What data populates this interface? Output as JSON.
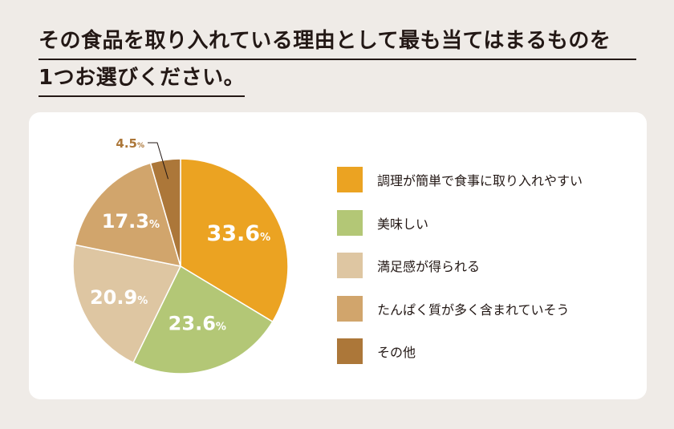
{
  "title": {
    "line1": "その食品を取り入れている理由として最も当てはまるものを",
    "line2": "1つお選びください。"
  },
  "chart_data": {
    "type": "pie",
    "unit": "%",
    "slices": [
      {
        "label": "調理が簡単で食事に取り入れやすい",
        "value": 33.6,
        "color": "#eba322",
        "value_text": "33.6"
      },
      {
        "label": "美味しい",
        "value": 23.6,
        "color": "#b3c776",
        "value_text": "23.6"
      },
      {
        "label": "満足感が得られる",
        "value": 20.9,
        "color": "#dec6a2",
        "value_text": "20.9"
      },
      {
        "label": "たんぱく質が多く含まれていそう",
        "value": 17.3,
        "color": "#d1a56c",
        "value_text": "17.3"
      },
      {
        "label": "その他",
        "value": 4.5,
        "color": "#ac7739",
        "value_text": "4.5"
      }
    ]
  }
}
